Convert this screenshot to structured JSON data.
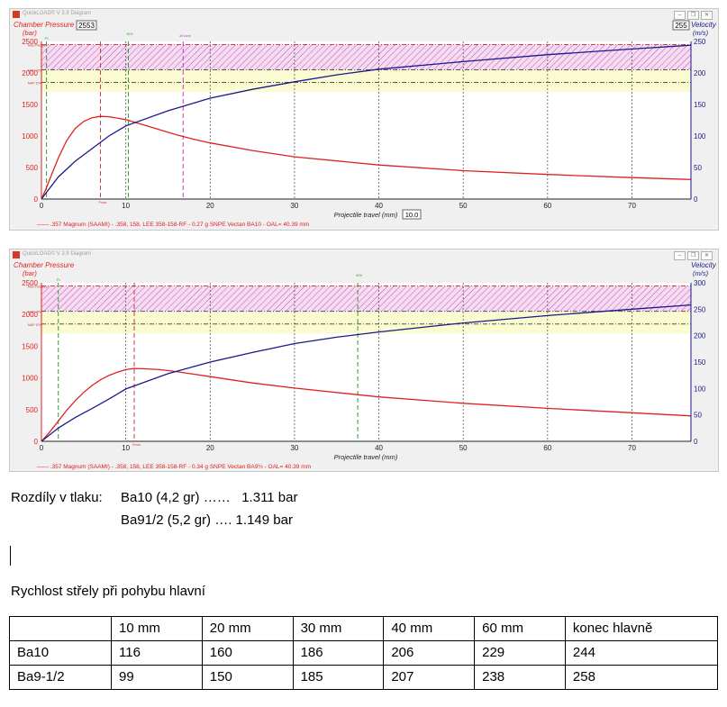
{
  "charts": [
    {
      "window_title": "QuickLOAD© V 3.9 Diagram",
      "left_axis_title": "Chamber Pressure",
      "left_axis_unit": "(bar)",
      "right_axis_title": "Velocity",
      "right_axis_unit": "(m/s)",
      "pressure_box": "2553",
      "velocity_box": "255",
      "x_label_box": "10.0",
      "legend": "—— .357 Magnum (SAAMI) - .358, 158, LEE 358-158-RF - 0.27 g SNPE Vectan BA10 - OAL= 40.39 mm",
      "ref_labels": [
        "Max.Pressure",
        "MAP -5%",
        "MAP 10%"
      ],
      "marker_labels": [
        "Pmax",
        "90%",
        "all burnt",
        "P1"
      ]
    },
    {
      "window_title": "QuickLOAD© V 3.9 Diagram",
      "left_axis_title": "Chamber Pressure",
      "left_axis_unit": "(bar)",
      "right_axis_title": "Velocity",
      "right_axis_unit": "(m/s)",
      "legend": "—— .357 Magnum (SAAMI) - .358, 158, LEE 358-158-RF - 0.34 g SNPE Vectan BA9½ - OAL= 40.39 mm",
      "ref_labels": [
        "Max.Pressure",
        "MAP -5%",
        "MAP 10%"
      ],
      "marker_labels": [
        "Pmax",
        "90%",
        "P1"
      ]
    }
  ],
  "chart_data": [
    {
      "type": "line",
      "xlabel": "Projectile travel (mm)",
      "x_ticks": [
        0,
        10,
        20,
        30,
        40,
        50,
        60,
        70
      ],
      "y_left_ticks": [
        0,
        500,
        1000,
        1500,
        2000,
        2500
      ],
      "y_right_ticks": [
        0,
        50,
        100,
        150,
        200,
        250
      ],
      "xlim": [
        0,
        77
      ],
      "ylim_left": [
        0,
        2500
      ],
      "ylim_right": [
        0,
        250
      ],
      "grid": true,
      "hatch_band": [
        2050,
        2450
      ],
      "yellow_band": [
        1700,
        2050
      ],
      "ref_lines": [
        2450,
        2050,
        1850
      ],
      "markers": [
        {
          "x": 0.6,
          "color": "#2e9e2e"
        },
        {
          "x": 7.0,
          "color": "#c04040"
        },
        {
          "x": 10.3,
          "color": "#2e9e2e"
        },
        {
          "x": 16.8,
          "color": "#c040c0"
        }
      ],
      "series": [
        {
          "axis": "left",
          "color": "#e02020",
          "x": [
            0,
            0.5,
            1,
            2,
            3,
            4,
            5,
            6,
            7,
            8,
            10,
            12,
            14,
            16,
            18,
            20,
            25,
            30,
            40,
            50,
            60,
            70,
            77
          ],
          "y": [
            0,
            150,
            320,
            650,
            930,
            1120,
            1230,
            1290,
            1311,
            1305,
            1260,
            1180,
            1100,
            1020,
            950,
            890,
            770,
            670,
            540,
            450,
            390,
            340,
            310
          ]
        },
        {
          "axis": "right",
          "color": "#1a1a8a",
          "x": [
            0,
            2,
            4,
            6,
            8,
            10,
            15,
            20,
            25,
            30,
            35,
            40,
            50,
            60,
            70,
            77
          ],
          "y": [
            0,
            35,
            60,
            80,
            100,
            116,
            140,
            160,
            174,
            186,
            197,
            206,
            218,
            229,
            238,
            244
          ]
        }
      ]
    },
    {
      "type": "line",
      "xlabel": "Projectile travel (mm)",
      "x_ticks": [
        0,
        10,
        20,
        30,
        40,
        50,
        60,
        70
      ],
      "y_left_ticks": [
        0,
        500,
        1000,
        1500,
        2000,
        2500
      ],
      "y_right_ticks": [
        0,
        50,
        100,
        150,
        200,
        250,
        300
      ],
      "xlim": [
        0,
        77
      ],
      "ylim_left": [
        0,
        2500
      ],
      "ylim_right": [
        0,
        300
      ],
      "grid": true,
      "hatch_band": [
        2050,
        2450
      ],
      "yellow_band": [
        1700,
        2050
      ],
      "ref_lines": [
        2450,
        2050,
        1850
      ],
      "markers": [
        {
          "x": 2.0,
          "color": "#2e9e2e"
        },
        {
          "x": 11.0,
          "color": "#c04040"
        },
        {
          "x": 37.5,
          "color": "#2e9e2e"
        }
      ],
      "series": [
        {
          "axis": "left",
          "color": "#e02020",
          "x": [
            0,
            1,
            2,
            3,
            4,
            5,
            6,
            7,
            8,
            9,
            10,
            11,
            12,
            14,
            16,
            18,
            20,
            25,
            30,
            40,
            50,
            60,
            70,
            77
          ],
          "y": [
            0,
            150,
            320,
            490,
            640,
            770,
            880,
            970,
            1040,
            1090,
            1130,
            1149,
            1145,
            1130,
            1100,
            1060,
            1020,
            920,
            840,
            700,
            600,
            520,
            450,
            400
          ]
        },
        {
          "axis": "right",
          "color": "#1a1a8a",
          "x": [
            0,
            2,
            4,
            6,
            8,
            10,
            15,
            20,
            25,
            30,
            35,
            40,
            50,
            60,
            70,
            77
          ],
          "y": [
            0,
            25,
            45,
            62,
            80,
            99,
            128,
            150,
            168,
            185,
            197,
            207,
            224,
            238,
            250,
            258
          ]
        }
      ]
    }
  ],
  "doc": {
    "line1_label": "Rozdíly v tlaku:",
    "line1_value": "Ba10 (4,2 gr) ……   1.311 bar",
    "line2_value": "Ba91/2 (5,2 gr) …. 1.149 bar",
    "table_title": "Rychlost střely při pohybu hlavní"
  },
  "table": {
    "headers": [
      "",
      "10 mm",
      "20 mm",
      "30 mm",
      "40 mm",
      "60 mm",
      "konec hlavně"
    ],
    "rows": [
      [
        "Ba10",
        "116",
        "160",
        "186",
        "206",
        "229",
        "244"
      ],
      [
        "Ba9-1/2",
        "99",
        "150",
        "185",
        "207",
        "238",
        "258"
      ]
    ]
  }
}
